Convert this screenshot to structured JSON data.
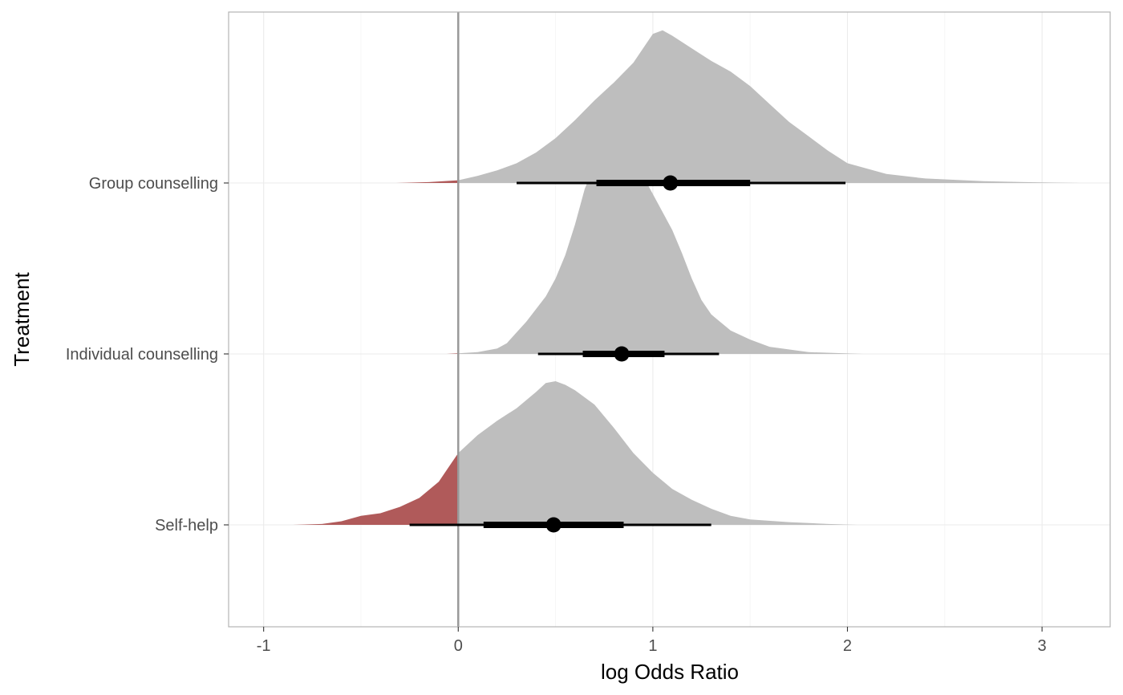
{
  "chart_data": {
    "type": "density",
    "xlabel": "log Odds Ratio",
    "ylabel": "Treatment",
    "xlim": [
      -1.18,
      3.35
    ],
    "x_ticks": [
      -1,
      0,
      1,
      2,
      3
    ],
    "x_tick_labels": [
      "-1",
      "0",
      "1",
      "2",
      "3"
    ],
    "grid": true,
    "reference_line": 0,
    "colors": {
      "density_fill": "#bebebe",
      "below_zero_fill": "#b05a5a",
      "point": "#000000",
      "reference_line": "#999999",
      "panel_border": "#b3b3b3",
      "grid": "#ebebeb"
    },
    "categories": [
      "Group counselling",
      "Individual counselling",
      "Self-help"
    ],
    "series": [
      {
        "category": "Group counselling",
        "median": 1.09,
        "interval_66": [
          0.71,
          1.5
        ],
        "interval_95": [
          0.3,
          1.99
        ],
        "density": {
          "x": [
            -0.32,
            -0.15,
            0.0,
            0.1,
            0.2,
            0.3,
            0.4,
            0.5,
            0.6,
            0.7,
            0.8,
            0.9,
            0.95,
            1.0,
            1.05,
            1.1,
            1.2,
            1.3,
            1.4,
            1.5,
            1.6,
            1.7,
            1.8,
            1.9,
            2.0,
            2.2,
            2.4,
            2.7,
            3.0,
            3.2
          ],
          "y": [
            0.0,
            0.005,
            0.015,
            0.04,
            0.07,
            0.11,
            0.17,
            0.25,
            0.35,
            0.46,
            0.56,
            0.67,
            0.75,
            0.83,
            0.85,
            0.82,
            0.75,
            0.68,
            0.62,
            0.54,
            0.44,
            0.34,
            0.26,
            0.18,
            0.11,
            0.05,
            0.025,
            0.01,
            0.003,
            0.0
          ]
        }
      },
      {
        "category": "Individual counselling",
        "median": 0.84,
        "interval_66": [
          0.64,
          1.06
        ],
        "interval_95": [
          0.41,
          1.34
        ],
        "density": {
          "x": [
            -0.06,
            0.1,
            0.2,
            0.25,
            0.35,
            0.45,
            0.5,
            0.55,
            0.6,
            0.65,
            0.7,
            0.75,
            0.8,
            0.83,
            0.85,
            0.88,
            0.92,
            0.95,
            1.0,
            1.05,
            1.1,
            1.15,
            1.2,
            1.25,
            1.3,
            1.4,
            1.5,
            1.6,
            1.8,
            2.08
          ],
          "y": [
            0.0,
            0.01,
            0.03,
            0.06,
            0.18,
            0.32,
            0.42,
            0.55,
            0.72,
            0.92,
            1.05,
            1.12,
            1.18,
            1.22,
            1.23,
            1.2,
            1.08,
            0.99,
            0.89,
            0.79,
            0.69,
            0.56,
            0.42,
            0.3,
            0.22,
            0.13,
            0.08,
            0.04,
            0.01,
            0.0
          ]
        }
      },
      {
        "category": "Self-help",
        "median": 0.49,
        "interval_66": [
          0.13,
          0.85
        ],
        "interval_95": [
          -0.25,
          1.3
        ],
        "density": {
          "x": [
            -0.85,
            -0.7,
            -0.6,
            -0.5,
            -0.4,
            -0.3,
            -0.2,
            -0.1,
            -0.05,
            0.0,
            0.1,
            0.2,
            0.3,
            0.4,
            0.45,
            0.5,
            0.55,
            0.6,
            0.7,
            0.8,
            0.9,
            1.0,
            1.1,
            1.2,
            1.3,
            1.4,
            1.5,
            1.7,
            1.9,
            2.05
          ],
          "y": [
            0.0,
            0.005,
            0.02,
            0.05,
            0.065,
            0.1,
            0.15,
            0.24,
            0.32,
            0.4,
            0.5,
            0.58,
            0.65,
            0.74,
            0.79,
            0.8,
            0.78,
            0.75,
            0.67,
            0.54,
            0.4,
            0.29,
            0.2,
            0.14,
            0.09,
            0.05,
            0.03,
            0.015,
            0.005,
            0.0
          ]
        }
      }
    ]
  }
}
